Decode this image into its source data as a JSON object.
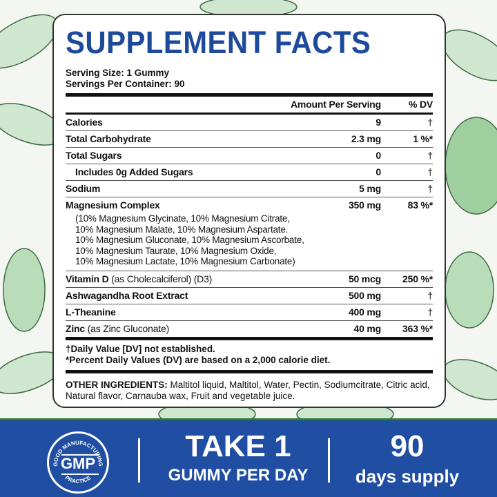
{
  "title": "SUPPLEMENT FACTS",
  "serving_size": "Serving Size: 1 Gummy",
  "servings_per_container": "Servings Per Container: 90",
  "header": {
    "amount": "Amount Per Serving",
    "dv": "% DV"
  },
  "rows": [
    {
      "name": "Calories",
      "detail": "",
      "amount": "9",
      "dv": "†"
    },
    {
      "name": "Total Carbohydrate",
      "detail": "",
      "amount": "2.3 mg",
      "dv": "1 %*"
    },
    {
      "name": "Total Sugars",
      "detail": "",
      "amount": "0",
      "dv": "†"
    },
    {
      "name": "Includes 0g Added Sugars",
      "detail": "",
      "amount": "0",
      "dv": "†"
    },
    {
      "name": "Sodium",
      "detail": "",
      "amount": "5 mg",
      "dv": "†"
    },
    {
      "name": "Magnesium Complex",
      "detail": "",
      "amount": "350 mg",
      "dv": "83 %*"
    },
    {
      "name": "Vitamin D",
      "detail": " (as Cholecalciferol) (D3)",
      "amount": "50 mcg",
      "dv": "250 %*"
    },
    {
      "name": "Ashwagandha Root Extract",
      "detail": "",
      "amount": "500 mg",
      "dv": "†"
    },
    {
      "name": "L-Theanine",
      "detail": "",
      "amount": "400 mg",
      "dv": "†"
    },
    {
      "name": "Zinc",
      "detail": " (as Zinc Gluconate)",
      "amount": "40 mg",
      "dv": "363 %*"
    }
  ],
  "magnesium_sub": [
    "(10% Magnesium Glycinate, 10% Magnesium Citrate,",
    "10% Magnesium Malate, 10% Magnesium Aspartate.",
    "10% Magnesium Gluconate, 10% Magnesium Ascorbate,",
    "10% Magnesium Taurate, 10% Magnesium Oxide,",
    "10% Magnesium Lactate, 10% Magnesium Carbonate)"
  ],
  "footnotes": [
    "†Daily Value [DV] not established.",
    "*Percent Daily Values (DV) are based on a 2,000 calorie diet."
  ],
  "other_label": "OTHER INGREDIENTS:",
  "other_text": " Maltitol liquid, Maltitol, Water, Pectin, Sodiumcitrate, Citric acid, Natural flavor, Carnauba wax, Fruit and vegetable juice.",
  "band": {
    "gmp": "GMP",
    "gmp_top": "GOOD MANUFACTURING",
    "gmp_bottom": "PRACTICE",
    "take": "TAKE 1",
    "gummy": "GUMMY PER DAY",
    "days_num": "90",
    "days": "days supply"
  },
  "colors": {
    "title": "#1e4a9c",
    "band": "#1f4ea3",
    "leaf": "#5aa463"
  }
}
